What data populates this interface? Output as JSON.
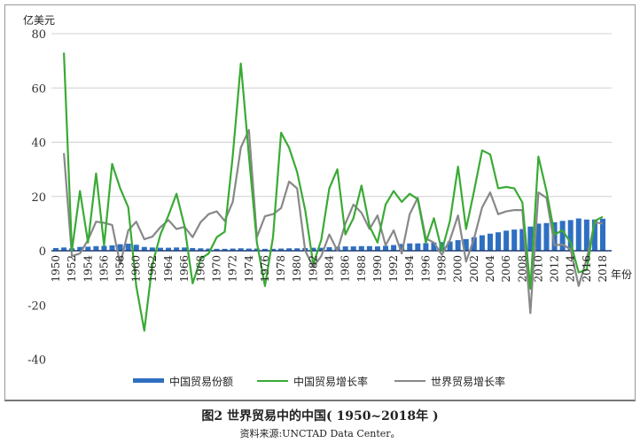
{
  "chart_data": {
    "type": "bar+line",
    "title": "图2  世界贸易中的中国( 1950~2018年 )",
    "source": "资料来源:UNCTAD Data Center。",
    "ylabel": "亿美元",
    "xlabel": "年份",
    "ylim": [
      -40,
      80
    ],
    "yticks": [
      "80",
      "60",
      "40",
      "20",
      "0",
      "-20",
      "-40"
    ],
    "yticks_values": [
      80,
      60,
      40,
      20,
      0,
      -20,
      -40
    ],
    "grid": true,
    "legend_position": "bottom",
    "x": [
      1950,
      1951,
      1952,
      1953,
      1954,
      1955,
      1956,
      1957,
      1958,
      1959,
      1960,
      1961,
      1962,
      1963,
      1964,
      1965,
      1966,
      1967,
      1968,
      1969,
      1970,
      1971,
      1972,
      1973,
      1974,
      1975,
      1976,
      1977,
      1978,
      1979,
      1980,
      1981,
      1982,
      1983,
      1984,
      1985,
      1986,
      1987,
      1988,
      1989,
      1990,
      1991,
      1992,
      1993,
      1994,
      1995,
      1996,
      1997,
      1998,
      1999,
      2000,
      2001,
      2002,
      2003,
      2004,
      2005,
      2006,
      2007,
      2008,
      2009,
      2010,
      2011,
      2012,
      2013,
      2014,
      2015,
      2016,
      2017,
      2018
    ],
    "series": [
      {
        "name": "中国贸易份额",
        "type": "bar",
        "color": "#2e6fc1",
        "values": [
          1,
          1.2,
          0.9,
          1.4,
          1.5,
          1.7,
          1.8,
          2,
          2.4,
          2.6,
          2.2,
          1.4,
          1.2,
          1.1,
          1.1,
          1.2,
          1.2,
          1,
          0.9,
          0.8,
          0.7,
          0.7,
          0.8,
          0.9,
          0.8,
          0.8,
          0.7,
          0.7,
          0.8,
          0.9,
          0.9,
          1,
          1.1,
          1.1,
          1.3,
          1.5,
          1.6,
          1.6,
          1.7,
          1.7,
          1.6,
          1.8,
          2.1,
          2.5,
          2.7,
          2.7,
          2.8,
          3,
          3.2,
          3.4,
          3.9,
          4.3,
          5,
          5.7,
          6.3,
          6.8,
          7.4,
          7.8,
          8,
          8.9,
          10,
          10.2,
          10.5,
          11,
          11.3,
          11.9,
          11.5,
          11.5,
          11.8
        ]
      },
      {
        "name": "中国贸易增长率",
        "type": "line",
        "color": "#3aaa35",
        "values": [
          null,
          73,
          0,
          22,
          3,
          28.5,
          2,
          32,
          23,
          16,
          -13,
          -29.5,
          -5,
          6,
          13,
          21,
          9,
          -12,
          -3,
          -1,
          5,
          7,
          35,
          69,
          35,
          3,
          -13,
          5,
          43.5,
          38,
          29,
          15,
          -5,
          4,
          23,
          30,
          6,
          12,
          24,
          9,
          3,
          17,
          22,
          18,
          21,
          19,
          3,
          12,
          0,
          11,
          31,
          8,
          22,
          37,
          35.5,
          23,
          23.5,
          23,
          17.8,
          -14,
          34.7,
          22,
          6,
          7.5,
          3,
          -8,
          -7,
          11,
          12.5
        ]
      },
      {
        "name": "世界贸易增长率",
        "type": "line",
        "color": "#888888",
        "values": [
          null,
          36,
          -2,
          -1,
          4,
          10.7,
          10.3,
          9.5,
          -5,
          7.5,
          10.7,
          4.2,
          5.2,
          8.7,
          11.3,
          8,
          8.8,
          5,
          10.5,
          13.5,
          14.5,
          11,
          18,
          38,
          44.5,
          5,
          12.7,
          13.5,
          15.7,
          25.5,
          23,
          0,
          -6,
          -2,
          6,
          0,
          10,
          17,
          14,
          8,
          13,
          2,
          7.5,
          -1,
          13.5,
          19.5,
          4.5,
          3,
          -1.5,
          4,
          13,
          -4,
          4.5,
          16,
          21.5,
          13.5,
          14.5,
          15,
          15,
          -23,
          21.5,
          19.5,
          2,
          2.3,
          0.5,
          -13,
          -3,
          10.5,
          10
        ]
      }
    ]
  }
}
